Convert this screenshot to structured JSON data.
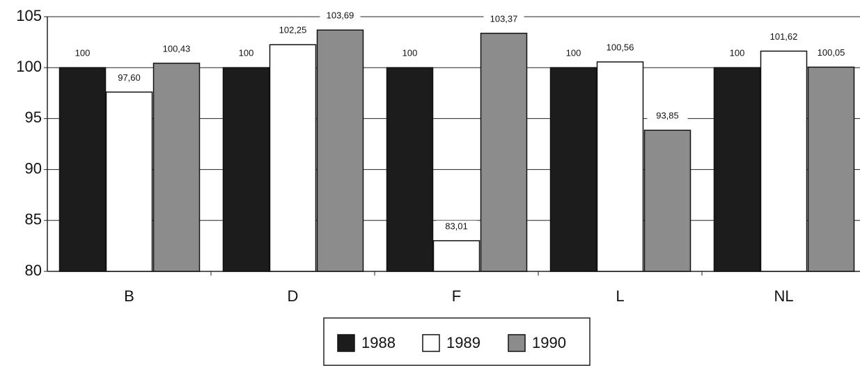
{
  "chart_data": {
    "type": "bar",
    "categories": [
      "B",
      "D",
      "F",
      "L",
      "NL"
    ],
    "series": [
      {
        "name": "1988",
        "color": "#1c1c1c",
        "values": [
          100,
          100,
          100,
          100,
          100
        ],
        "value_labels": [
          "100",
          "100",
          "100",
          "100",
          "100"
        ]
      },
      {
        "name": "1989",
        "color": "#ffffff",
        "values": [
          97.6,
          102.25,
          83.01,
          100.56,
          101.62
        ],
        "value_labels": [
          "97,60",
          "102,25",
          "83,01",
          "100,56",
          "101,62"
        ]
      },
      {
        "name": "1990",
        "color": "#8c8c8c",
        "values": [
          100.43,
          103.69,
          103.37,
          93.85,
          100.05
        ],
        "value_labels": [
          "100,43",
          "103,69",
          "103,37",
          "93,85",
          "100,05"
        ]
      }
    ],
    "ylim": [
      80,
      105
    ],
    "yticks": [
      80,
      85,
      90,
      95,
      100,
      105
    ],
    "grid": true,
    "legend": "bottom"
  }
}
